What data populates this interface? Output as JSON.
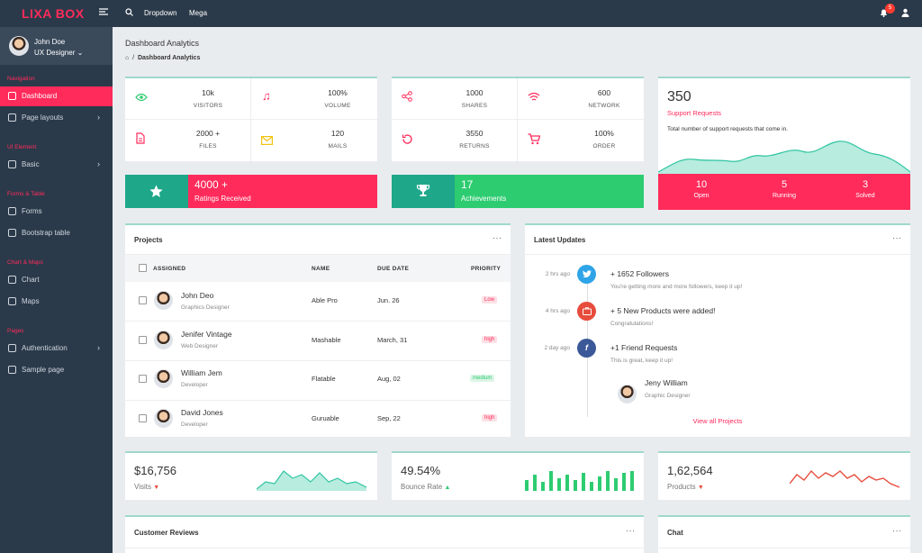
{
  "topbar": {
    "logo": "LIXA BOX",
    "links": [
      "Dropdown",
      "Mega"
    ],
    "notif_count": "5"
  },
  "user": {
    "name": "John Doe",
    "role": "UX Designer"
  },
  "sidebar": {
    "sections": [
      {
        "caption": "Navigation",
        "items": [
          {
            "label": "Dashboard",
            "active": true,
            "chevron": false
          },
          {
            "label": "Page layouts",
            "chevron": true
          }
        ]
      },
      {
        "caption": "UI Element",
        "items": [
          {
            "label": "Basic",
            "chevron": true
          }
        ]
      },
      {
        "caption": "Forms & Table",
        "items": [
          {
            "label": "Forms"
          },
          {
            "label": "Bootstrap table"
          }
        ]
      },
      {
        "caption": "Chart & Maps",
        "items": [
          {
            "label": "Chart"
          },
          {
            "label": "Maps"
          }
        ]
      },
      {
        "caption": "Pages",
        "items": [
          {
            "label": "Authentication",
            "chevron": true
          },
          {
            "label": "Sample page"
          }
        ]
      }
    ]
  },
  "header": {
    "title": "Dashboard Analytics",
    "breadcrumb": "Dashboard Analytics"
  },
  "stats_left": [
    {
      "value": "10k",
      "label": "VISITORS",
      "icon": "eye-icon",
      "color": "#2ecc71"
    },
    {
      "value": "100%",
      "label": "VOLUME",
      "icon": "music-icon",
      "color": "#ff2b5b"
    },
    {
      "value": "2000 +",
      "label": "FILES",
      "icon": "file-icon",
      "color": "#ff2b5b"
    },
    {
      "value": "120",
      "label": "MAILS",
      "icon": "mail-icon",
      "color": "#f1c40f"
    }
  ],
  "stats_mid": [
    {
      "value": "1000",
      "label": "SHARES",
      "icon": "share-icon",
      "color": "#ff2b5b"
    },
    {
      "value": "600",
      "label": "NETWORK",
      "icon": "wifi-icon",
      "color": "#ff2b5b"
    },
    {
      "value": "3550",
      "label": "RETURNS",
      "icon": "refresh-icon",
      "color": "#ff2b5b"
    },
    {
      "value": "100%",
      "label": "ORDER",
      "icon": "cart-icon",
      "color": "#ff2b5b"
    }
  ],
  "banners": [
    {
      "value": "4000 +",
      "label": "Ratings Received",
      "icon": "star-icon"
    },
    {
      "value": "17",
      "label": "Achievements",
      "icon": "trophy-icon"
    }
  ],
  "support": {
    "value": "350",
    "title": "Support Requests",
    "desc": "Total number of support requests that come in.",
    "stats": [
      {
        "value": "10",
        "label": "Open"
      },
      {
        "value": "5",
        "label": "Running"
      },
      {
        "value": "3",
        "label": "Solved"
      }
    ]
  },
  "projects": {
    "title": "Projects",
    "headers": [
      "ASSIGNED",
      "NAME",
      "DUE DATE",
      "PRIORITY"
    ],
    "rows": [
      {
        "name": "John Deo",
        "role": "Graphics Designer",
        "project": "Able Pro",
        "due": "Jun. 26",
        "priority": "Low"
      },
      {
        "name": "Jenifer Vintage",
        "role": "Web Designer",
        "project": "Mashable",
        "due": "March, 31",
        "priority": "high"
      },
      {
        "name": "William Jem",
        "role": "Developer",
        "project": "Flatable",
        "due": "Aug, 02",
        "priority": "medium"
      },
      {
        "name": "David Jones",
        "role": "Developer",
        "project": "Guruable",
        "due": "Sep, 22",
        "priority": "high"
      }
    ]
  },
  "updates": {
    "title": "Latest Updates",
    "items": [
      {
        "time": "2 hrs ago",
        "title": "+ 1652 Followers",
        "sub": "You're getting more and more followers, keep it up!",
        "icon": "twitter-icon",
        "color": "#2fa4e7"
      },
      {
        "time": "4 hrs ago",
        "title": "+ 5 New Products were added!",
        "sub": "Congratulations!",
        "icon": "briefcase-icon",
        "color": "#e74c3c"
      },
      {
        "time": "2 day ago",
        "title": "+1 Friend Requests",
        "sub": "This is great, keep it up!",
        "icon": "facebook-icon",
        "color": "#3b5998"
      }
    ],
    "friend": {
      "name": "Jeny William",
      "role": "Graphic Designer"
    },
    "link": "View all Projects"
  },
  "kpis": [
    {
      "value": "$16,756",
      "label": "Visits",
      "trend": "down",
      "chart": "area",
      "color": "#2fc5a1"
    },
    {
      "value": "49.54%",
      "label": "Bounce Rate",
      "trend": "up",
      "chart": "bar",
      "color": "#2ecc71"
    },
    {
      "value": "1,62,564",
      "label": "Products",
      "trend": "down",
      "chart": "line",
      "color": "#e74c3c"
    }
  ],
  "bottom": {
    "reviews_title": "Customer Reviews",
    "chat_title": "Chat"
  }
}
